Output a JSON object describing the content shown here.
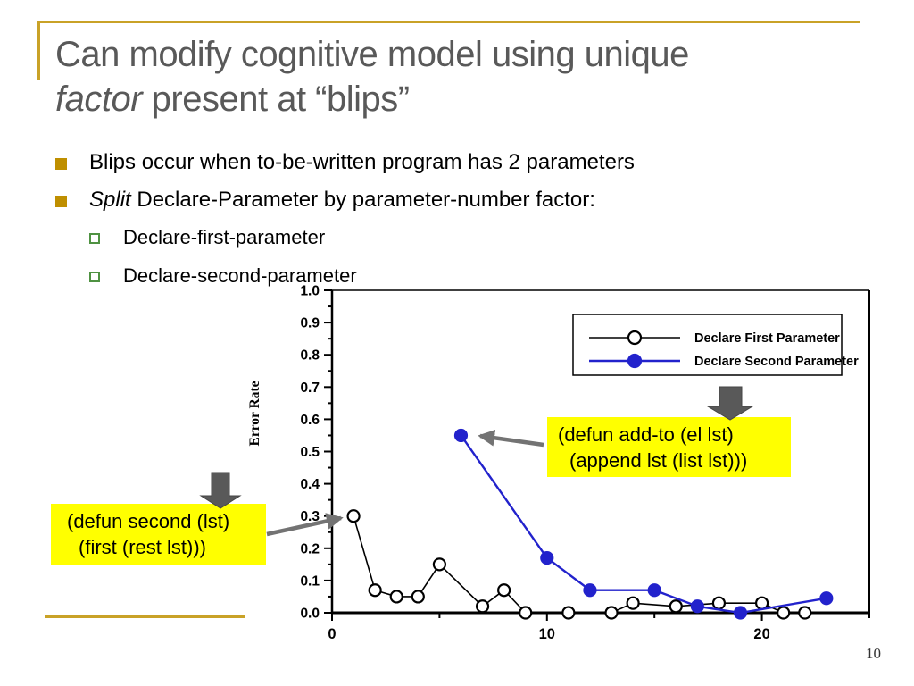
{
  "slide": {
    "title_line1": "Can modify cognitive model using unique",
    "title_line2_italic": "factor",
    "title_line2_rest": " present at “blips”",
    "page_number": "10"
  },
  "bullets": {
    "b1": "Blips occur when to-be-written program has 2 parameters",
    "b2_italic": "Split",
    "b2_rest": " Declare-Parameter by parameter-number factor:",
    "sub1": "Declare-first-parameter",
    "sub2": "Declare-second-parameter"
  },
  "callouts": {
    "second": {
      "line1": "(defun second (lst)",
      "line2": "(first (rest lst)))"
    },
    "addto": {
      "line1": "(defun add-to (el lst)",
      "line2": "(append lst (list lst)))"
    }
  },
  "colors": {
    "gold_rule": "#C9A227",
    "bullet_gold": "#BF8F00",
    "sub_bullet_green": "#4F9242",
    "title_gray": "#595959",
    "callout_yellow": "#FFFF00",
    "connector_arrow_gray": "#737373",
    "block_arrow_gray": "#595959",
    "series_black": "#000000",
    "series_blue": "#2222CC"
  },
  "chart_data": {
    "type": "line",
    "title": "",
    "xlabel": "",
    "ylabel": "Error Rate",
    "xlim": [
      0,
      25
    ],
    "ylim": [
      0,
      1.0
    ],
    "x_major_ticks": [
      0,
      5,
      10,
      15,
      20,
      25
    ],
    "x_labeled_ticks": [
      0,
      10,
      20
    ],
    "y_label_step": 0.1,
    "y_minor_step": 0.05,
    "grid": false,
    "legend_position": "upper right",
    "series": [
      {
        "name": "Declare First Parameter",
        "color": "#000000",
        "marker": "open-circle",
        "points": [
          [
            1,
            0.3
          ],
          [
            2,
            0.07
          ],
          [
            3,
            0.05
          ],
          [
            4,
            0.05
          ],
          [
            5,
            0.15
          ],
          [
            7,
            0.02
          ],
          [
            8,
            0.07
          ],
          [
            9,
            0.0
          ],
          [
            11,
            0.0
          ],
          [
            13,
            0.0
          ],
          [
            14,
            0.03
          ],
          [
            16,
            0.02
          ],
          [
            18,
            0.03
          ],
          [
            20,
            0.03
          ],
          [
            21,
            0.0
          ],
          [
            22,
            0.0
          ]
        ]
      },
      {
        "name": "Declare Second Parameter",
        "color": "#2222CC",
        "marker": "filled-circle",
        "points": [
          [
            6,
            0.55
          ],
          [
            10,
            0.17
          ],
          [
            12,
            0.07
          ],
          [
            15,
            0.07
          ],
          [
            17,
            0.02
          ],
          [
            19,
            0.0
          ],
          [
            23,
            0.045
          ]
        ]
      }
    ]
  }
}
